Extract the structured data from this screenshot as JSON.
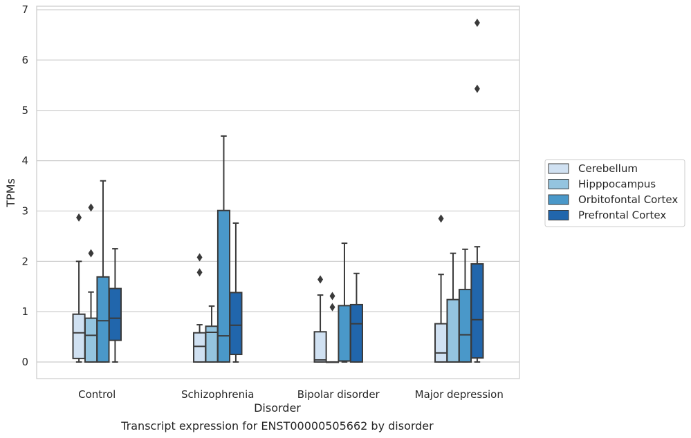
{
  "chart_data": {
    "type": "boxplot",
    "title": "Transcript expression for ENST00000505662 by disorder",
    "xlabel": "Disorder",
    "ylabel": "TPMs",
    "ylim": [
      -0.33,
      7.07
    ],
    "yticks": [
      "0",
      "1",
      "2",
      "3",
      "4",
      "5",
      "6",
      "7"
    ],
    "grid": "horizontal",
    "legend_position": "right",
    "categories": [
      "Control",
      "Schizophrenia",
      "Bipolar disorder",
      "Major depression"
    ],
    "series": [
      {
        "name": "Cerebellum",
        "color": "#d0e1f2",
        "boxes": [
          {
            "whislo": 0.0,
            "q1": 0.07,
            "med": 0.58,
            "q3": 0.95,
            "whishi": 2.0,
            "fliers": [
              2.87
            ]
          },
          {
            "whislo": 0.0,
            "q1": 0.0,
            "med": 0.31,
            "q3": 0.58,
            "whishi": 0.74,
            "fliers": [
              1.78,
              2.08
            ]
          },
          {
            "whislo": 0.0,
            "q1": 0.0,
            "med": 0.04,
            "q3": 0.6,
            "whishi": 1.33,
            "fliers": [
              1.64
            ]
          },
          {
            "whislo": 0.0,
            "q1": 0.0,
            "med": 0.18,
            "q3": 0.76,
            "whishi": 1.74,
            "fliers": [
              2.85
            ]
          }
        ]
      },
      {
        "name": "Hipppocampus",
        "color": "#94c4df",
        "boxes": [
          {
            "whislo": 0.0,
            "q1": 0.0,
            "med": 0.53,
            "q3": 0.87,
            "whishi": 1.39,
            "fliers": [
              2.16,
              3.07
            ]
          },
          {
            "whislo": 0.0,
            "q1": 0.0,
            "med": 0.59,
            "q3": 0.71,
            "whishi": 1.11,
            "fliers": []
          },
          {
            "whislo": 0.0,
            "q1": 0.0,
            "med": 0.0,
            "q3": 0.0,
            "whishi": 0.0,
            "fliers": [
              1.09,
              1.31
            ]
          },
          {
            "whislo": 0.0,
            "q1": 0.0,
            "med": 0.0,
            "q3": 1.24,
            "whishi": 2.16,
            "fliers": []
          }
        ]
      },
      {
        "name": "Orbitofontal Cortex",
        "color": "#4a98c9",
        "boxes": [
          {
            "whislo": 0.0,
            "q1": 0.0,
            "med": 0.82,
            "q3": 1.69,
            "whishi": 3.6,
            "fliers": []
          },
          {
            "whislo": 0.0,
            "q1": 0.0,
            "med": 0.52,
            "q3": 3.01,
            "whishi": 4.49,
            "fliers": []
          },
          {
            "whislo": 0.0,
            "q1": 0.02,
            "med": 0.02,
            "q3": 1.12,
            "whishi": 2.36,
            "fliers": []
          },
          {
            "whislo": 0.0,
            "q1": 0.0,
            "med": 0.54,
            "q3": 1.44,
            "whishi": 2.24,
            "fliers": []
          }
        ]
      },
      {
        "name": "Prefrontal Cortex",
        "color": "#2166ac",
        "boxes": [
          {
            "whislo": 0.0,
            "q1": 0.43,
            "med": 0.87,
            "q3": 1.46,
            "whishi": 2.25,
            "fliers": []
          },
          {
            "whislo": 0.0,
            "q1": 0.15,
            "med": 0.73,
            "q3": 1.38,
            "whishi": 2.76,
            "fliers": []
          },
          {
            "whislo": 0.0,
            "q1": 0.0,
            "med": 0.76,
            "q3": 1.14,
            "whishi": 1.76,
            "fliers": []
          },
          {
            "whislo": 0.0,
            "q1": 0.08,
            "med": 0.84,
            "q3": 1.95,
            "whishi": 2.29,
            "fliers": [
              5.43,
              6.74
            ]
          }
        ]
      }
    ]
  }
}
